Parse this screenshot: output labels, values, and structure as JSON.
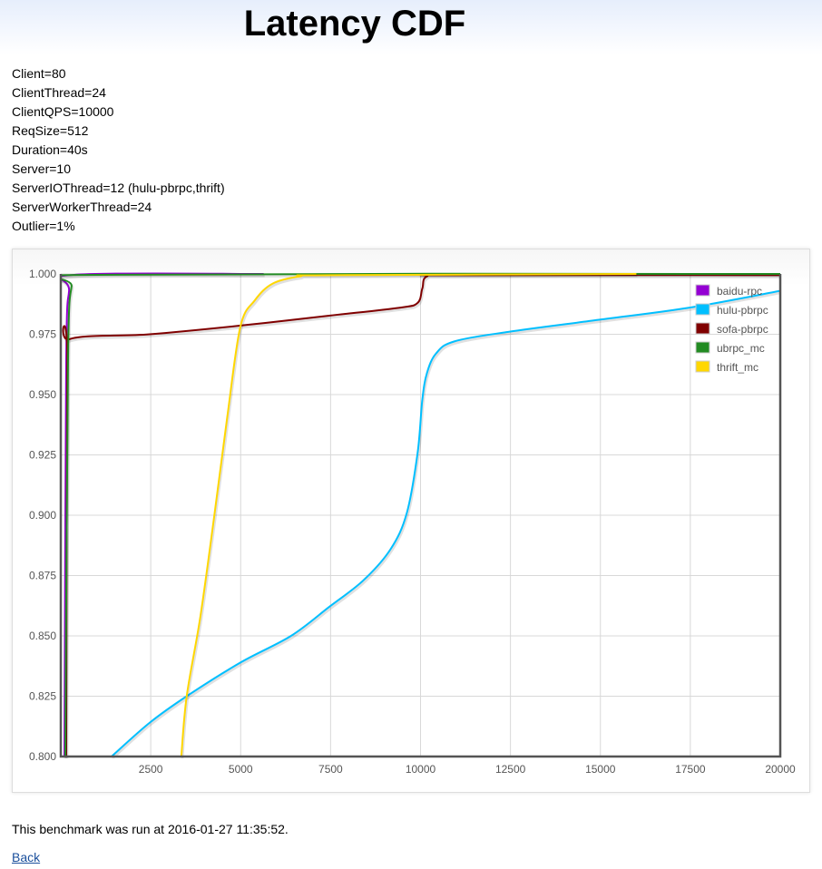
{
  "page": {
    "title": "Latency CDF",
    "params": [
      "Client=80",
      "ClientThread=24",
      "ClientQPS=10000",
      "ReqSize=512",
      "Duration=40s",
      "Server=10",
      "ServerIOThread=12 (hulu-pbrpc,thrift)",
      "ServerWorkerThread=24",
      "Outlier=1%"
    ],
    "footer": "This benchmark was run at 2016-01-27 11:35:52.",
    "back_link": "Back"
  },
  "chart_data": {
    "type": "line",
    "title": "Latency CDF",
    "xlabel": "",
    "ylabel": "",
    "xlim": [
      0,
      20000
    ],
    "ylim": [
      0.8,
      1.0
    ],
    "xticks": [
      2500,
      5000,
      7500,
      10000,
      12500,
      15000,
      17500,
      20000
    ],
    "yticks": [
      "0.800",
      "0.825",
      "0.850",
      "0.875",
      "0.900",
      "0.925",
      "0.950",
      "0.975",
      "1.000"
    ],
    "grid": true,
    "legend_position": "top-right",
    "series": [
      {
        "name": "baidu-rpc",
        "color": "#9400d3",
        "points": [
          [
            100,
            0.8
          ],
          [
            150,
            0.963
          ],
          [
            230,
            0.993
          ],
          [
            350,
            0.9996
          ],
          [
            5640,
            1.0
          ]
        ]
      },
      {
        "name": "hulu-pbrpc",
        "color": "#00bfff",
        "points": [
          [
            1410,
            0.8
          ],
          [
            2470,
            0.814
          ],
          [
            3500,
            0.825
          ],
          [
            5000,
            0.839
          ],
          [
            6400,
            0.85
          ],
          [
            7460,
            0.862
          ],
          [
            8410,
            0.873
          ],
          [
            9170,
            0.886
          ],
          [
            9620,
            0.901
          ],
          [
            9920,
            0.926
          ],
          [
            10050,
            0.948
          ],
          [
            10180,
            0.959
          ],
          [
            10430,
            0.967
          ],
          [
            10930,
            0.972
          ],
          [
            12440,
            0.976
          ],
          [
            14960,
            0.981
          ],
          [
            17460,
            0.986
          ],
          [
            20000,
            0.993
          ]
        ]
      },
      {
        "name": "sofa-pbrpc",
        "color": "#800000",
        "points": [
          [
            150,
            0.8
          ],
          [
            180,
            0.963
          ],
          [
            250,
            0.973
          ],
          [
            2470,
            0.975
          ],
          [
            5000,
            0.9786
          ],
          [
            7460,
            0.9827
          ],
          [
            9420,
            0.986
          ],
          [
            9920,
            0.988
          ],
          [
            10050,
            0.994
          ],
          [
            10180,
            0.999
          ],
          [
            10930,
            0.9995
          ],
          [
            20000,
            0.9995
          ]
        ]
      },
      {
        "name": "ubrpc_mc",
        "color": "#228b22",
        "points": [
          [
            125,
            0.8
          ],
          [
            200,
            0.963
          ],
          [
            300,
            0.995
          ],
          [
            480,
            0.9996
          ],
          [
            20000,
            1.0
          ]
        ]
      },
      {
        "name": "thrift_mc",
        "color": "#ffd700",
        "points": [
          [
            3350,
            0.8
          ],
          [
            3500,
            0.825
          ],
          [
            3880,
            0.858
          ],
          [
            4260,
            0.899
          ],
          [
            4630,
            0.941
          ],
          [
            4990,
            0.978
          ],
          [
            5390,
            0.989
          ],
          [
            5890,
            0.996
          ],
          [
            6650,
            0.999
          ],
          [
            7460,
            0.9995
          ],
          [
            16000,
            1.0
          ]
        ]
      }
    ]
  }
}
